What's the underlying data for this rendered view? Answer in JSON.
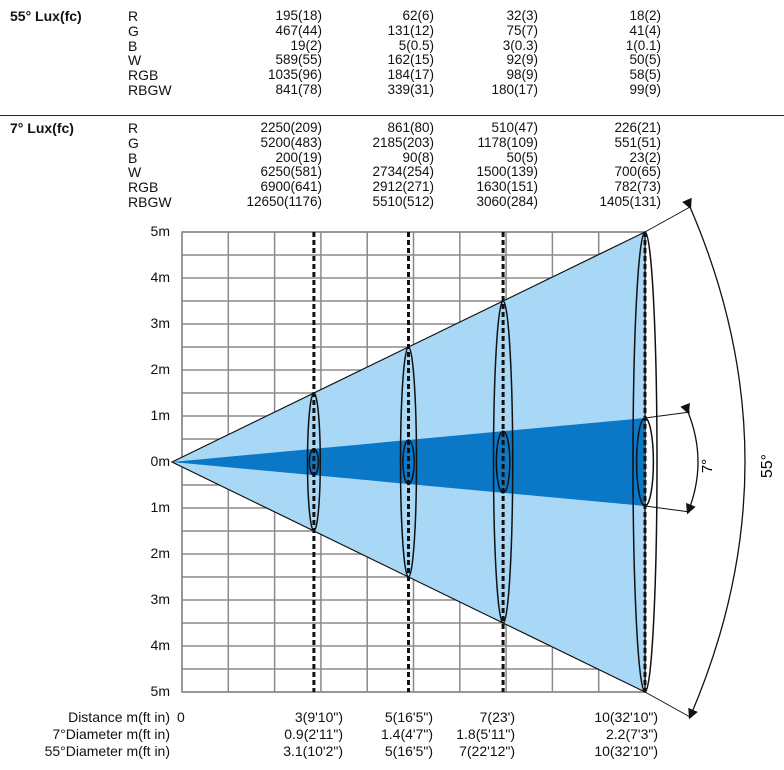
{
  "distances": [
    "3",
    "5",
    "7",
    "10"
  ],
  "lux_55": {
    "title": "55° Lux(fc)",
    "rows": [
      {
        "label": "R",
        "values": [
          "195(18)",
          "62(6)",
          "32(3)",
          "18(2)"
        ]
      },
      {
        "label": "G",
        "values": [
          "467(44)",
          "131(12)",
          "75(7)",
          "41(4)"
        ]
      },
      {
        "label": "B",
        "values": [
          "19(2)",
          "5(0.5)",
          "3(0.3)",
          "1(0.1)"
        ]
      },
      {
        "label": "W",
        "values": [
          "589(55)",
          "162(15)",
          "92(9)",
          "50(5)"
        ]
      },
      {
        "label": "RGB",
        "values": [
          "1035(96)",
          "184(17)",
          "98(9)",
          "58(5)"
        ]
      },
      {
        "label": "RBGW",
        "values": [
          "841(78)",
          "339(31)",
          "180(17)",
          "99(9)"
        ]
      }
    ]
  },
  "lux_7": {
    "title": "7° Lux(fc)",
    "rows": [
      {
        "label": "R",
        "values": [
          "2250(209)",
          "861(80)",
          "510(47)",
          "226(21)"
        ]
      },
      {
        "label": "G",
        "values": [
          "5200(483)",
          "2185(203)",
          "1178(109)",
          "551(51)"
        ]
      },
      {
        "label": "B",
        "values": [
          "200(19)",
          "90(8)",
          "50(5)",
          "23(2)"
        ]
      },
      {
        "label": "W",
        "values": [
          "6250(581)",
          "2734(254)",
          "1500(139)",
          "700(65)"
        ]
      },
      {
        "label": "RGB",
        "values": [
          "6900(641)",
          "2912(271)",
          "1630(151)",
          "782(73)"
        ]
      },
      {
        "label": "RBGW",
        "values": [
          "12650(1176)",
          "5510(512)",
          "3060(284)",
          "1405(131)"
        ]
      }
    ]
  },
  "axis": {
    "y_labels": [
      "5m",
      "4m",
      "3m",
      "2m",
      "1m",
      "0m",
      "1m",
      "2m",
      "3m",
      "4m",
      "5m"
    ]
  },
  "angles": {
    "narrow": "7°",
    "wide": "55°"
  },
  "footer": {
    "distance_label": "Distance  m(ft in)",
    "diam7_label": "7°Diameter  m(ft in)",
    "diam55_label": "55°Diameter  m(ft in)",
    "distance_zero": "0",
    "distance_values": [
      "3(9'10\")",
      "5(16'5\")",
      "7(23')",
      "10(32'10\")"
    ],
    "diam7_values": [
      "0.9(2'11\")",
      "1.4(4'7\")",
      "1.8(5'11\")",
      "2.2(7'3\")"
    ],
    "diam55_values": [
      "3.1(10'2\")",
      "5(16'5\")",
      "7(22'12\")",
      "10(32'10\")"
    ]
  },
  "colors": {
    "wide_beam": "#a8d8f5",
    "narrow_beam": "#0a77c7",
    "grid": "#8a8a8a"
  }
}
